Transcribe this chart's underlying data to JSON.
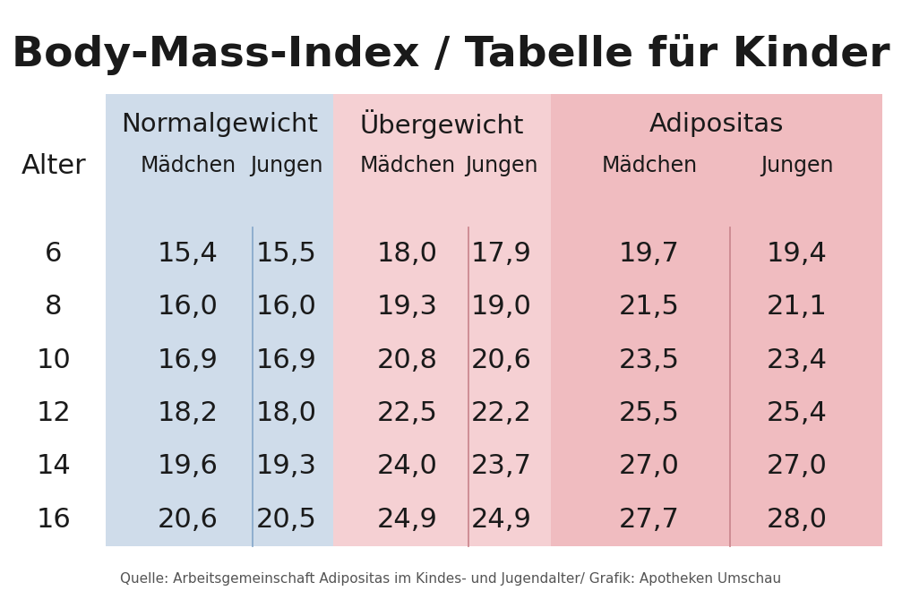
{
  "title": "Body-Mass-Index / Tabelle für Kinder",
  "title_fontsize": 34,
  "col_label_large_fontsize": 21,
  "col_label_small_fontsize": 17,
  "alter_label": "Alter",
  "alter_fontsize": 22,
  "data_fontsize": 22,
  "source_text": "Quelle: Arbeitsgemeinschaft Adipositas im Kindes- und Jugendalter/ Grafik: Apotheken Umschau",
  "source_fontsize": 11,
  "rows": [
    {
      "alter": "6",
      "ng_m": "15,4",
      "ng_j": "15,5",
      "ug_m": "18,0",
      "ug_j": "17,9",
      "ad_m": "19,7",
      "ad_j": "19,4"
    },
    {
      "alter": "8",
      "ng_m": "16,0",
      "ng_j": "16,0",
      "ug_m": "19,3",
      "ug_j": "19,0",
      "ad_m": "21,5",
      "ad_j": "21,1"
    },
    {
      "alter": "10",
      "ng_m": "16,9",
      "ng_j": "16,9",
      "ug_m": "20,8",
      "ug_j": "20,6",
      "ad_m": "23,5",
      "ad_j": "23,4"
    },
    {
      "alter": "12",
      "ng_m": "18,2",
      "ng_j": "18,0",
      "ug_m": "22,5",
      "ug_j": "22,2",
      "ad_m": "25,5",
      "ad_j": "25,4"
    },
    {
      "alter": "14",
      "ng_m": "19,6",
      "ng_j": "19,3",
      "ug_m": "24,0",
      "ug_j": "23,7",
      "ad_m": "27,0",
      "ad_j": "27,0"
    },
    {
      "alter": "16",
      "ng_m": "20,6",
      "ng_j": "20,5",
      "ug_m": "24,9",
      "ug_j": "24,9",
      "ad_m": "27,7",
      "ad_j": "28,0"
    }
  ],
  "bg_color": "#ffffff",
  "text_color": "#1a1a1a",
  "ng_color": "#cfdcea",
  "ug_color": "#f5d0d3",
  "ad_color": "#f0bcc0",
  "ng_divider": "#8aabcc",
  "ug_divider": "#cc8890",
  "ad_divider": "#cc8890",
  "source_color": "#555555",
  "normalgewicht_label": "Normalgewicht",
  "uebergewicht_label": "Übergewicht",
  "adipositas_label": "Adipositas",
  "madchen_label": "Mädchen",
  "jungen_label": "Jungen"
}
